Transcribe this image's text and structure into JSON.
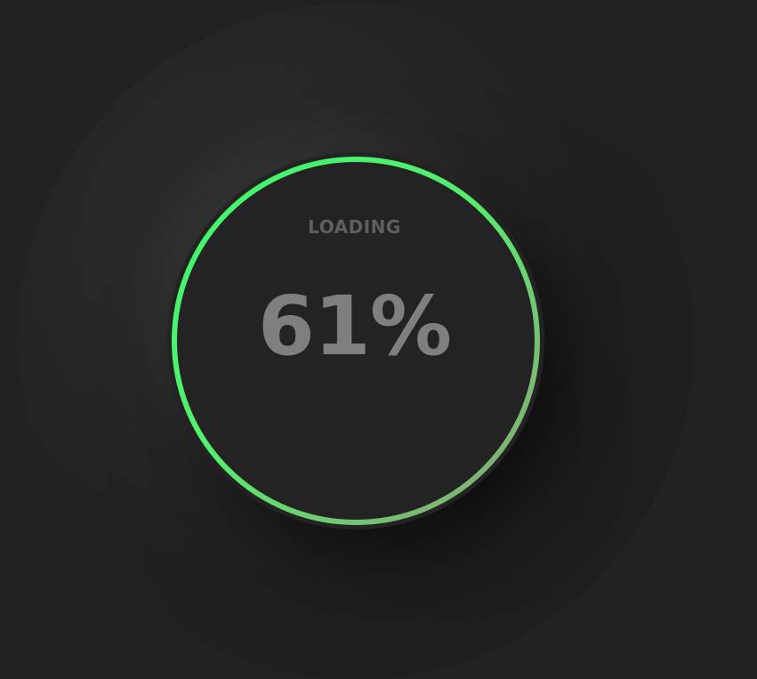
{
  "loader": {
    "label": "LOADING",
    "value_text": "61%",
    "progress": 0.61
  },
  "colors": {
    "background": "#222222",
    "dial": "#232323",
    "ring_start": "#3df56c",
    "ring_end": "#8f9f76",
    "label": "#5f5f5f",
    "value": "#7f7f7f"
  }
}
